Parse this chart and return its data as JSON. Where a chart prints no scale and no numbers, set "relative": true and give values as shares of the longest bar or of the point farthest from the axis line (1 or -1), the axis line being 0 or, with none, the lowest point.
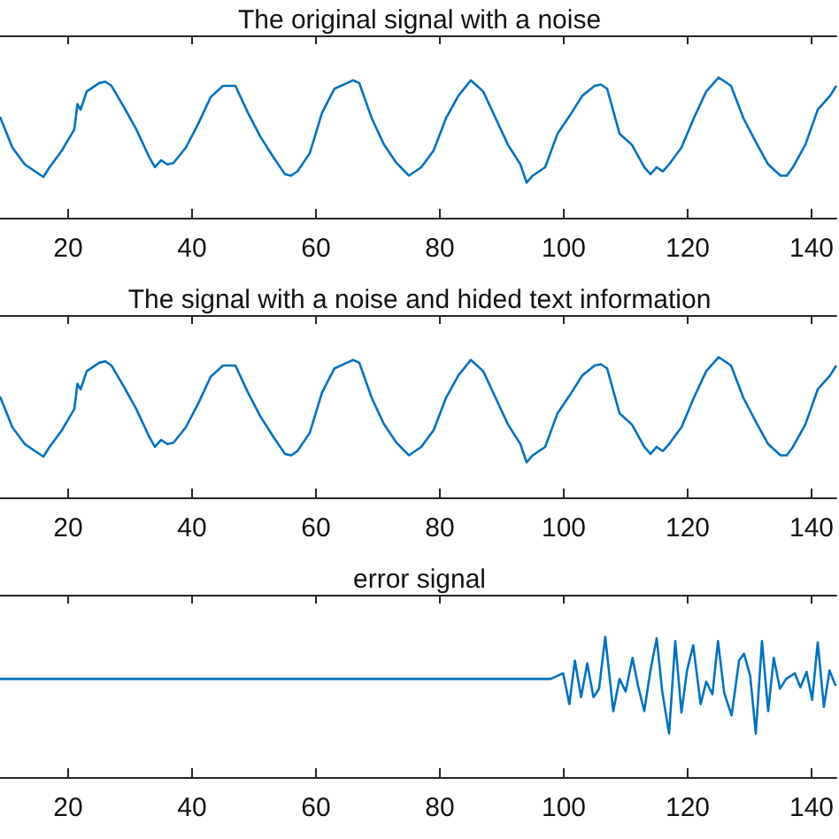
{
  "chart_data": [
    {
      "type": "line",
      "title": "The original signal with a noise",
      "relative": true,
      "tick_labels": "x",
      "xlim": [
        9,
        144
      ],
      "xticks": [
        20,
        40,
        60,
        80,
        100,
        120,
        140
      ],
      "series": [
        {
          "color": "#0072bd",
          "x": [
            9,
            11,
            13,
            15,
            16,
            17,
            19,
            21,
            21.5,
            22,
            23,
            25,
            26,
            27,
            29,
            31,
            33,
            34,
            35,
            36,
            37,
            39,
            41,
            43,
            45,
            47,
            49,
            51,
            53,
            55,
            56,
            57,
            59,
            61,
            63,
            65,
            66,
            67,
            69,
            71,
            73,
            75,
            77,
            79,
            81,
            83,
            85,
            87,
            89,
            91,
            93,
            94,
            95,
            97,
            99,
            101,
            103,
            105,
            106,
            107,
            109,
            111,
            113,
            114,
            115,
            116,
            117,
            119,
            121,
            123,
            125,
            127,
            129,
            131,
            133,
            135,
            136,
            137,
            139,
            141,
            143,
            144
          ],
          "values": [
            0.72,
            0.5,
            0.38,
            0.32,
            0.29,
            0.36,
            0.48,
            0.63,
            0.81,
            0.77,
            0.9,
            0.96,
            0.97,
            0.94,
            0.79,
            0.63,
            0.44,
            0.36,
            0.41,
            0.38,
            0.39,
            0.5,
            0.67,
            0.86,
            0.94,
            0.94,
            0.75,
            0.58,
            0.44,
            0.31,
            0.3,
            0.33,
            0.46,
            0.75,
            0.92,
            0.96,
            0.98,
            0.96,
            0.71,
            0.52,
            0.39,
            0.3,
            0.36,
            0.48,
            0.71,
            0.87,
            0.98,
            0.9,
            0.71,
            0.52,
            0.38,
            0.25,
            0.3,
            0.36,
            0.6,
            0.73,
            0.87,
            0.94,
            0.95,
            0.92,
            0.6,
            0.52,
            0.36,
            0.31,
            0.36,
            0.33,
            0.38,
            0.5,
            0.71,
            0.9,
            1,
            0.94,
            0.71,
            0.54,
            0.38,
            0.3,
            0.3,
            0.36,
            0.52,
            0.77,
            0.87,
            0.94
          ]
        }
      ]
    },
    {
      "type": "line",
      "title": "The signal with a noise and hided text information",
      "relative": true,
      "tick_labels": "x",
      "xlim": [
        9,
        144
      ],
      "xticks": [
        20,
        40,
        60,
        80,
        100,
        120,
        140
      ],
      "series": [
        {
          "color": "#0072bd",
          "x": [
            9,
            11,
            13,
            15,
            16,
            17,
            19,
            21,
            21.5,
            22,
            23,
            25,
            26,
            27,
            29,
            31,
            33,
            34,
            35,
            36,
            37,
            39,
            41,
            43,
            45,
            47,
            49,
            51,
            53,
            55,
            56,
            57,
            59,
            61,
            63,
            65,
            66,
            67,
            69,
            71,
            73,
            75,
            77,
            79,
            81,
            83,
            85,
            87,
            89,
            91,
            93,
            94,
            95,
            97,
            99,
            101,
            103,
            105,
            106,
            107,
            109,
            111,
            113,
            114,
            115,
            116,
            117,
            119,
            121,
            123,
            125,
            127,
            129,
            131,
            133,
            135,
            136,
            137,
            139,
            141,
            143,
            144
          ],
          "values": [
            0.72,
            0.5,
            0.38,
            0.32,
            0.29,
            0.36,
            0.48,
            0.63,
            0.81,
            0.77,
            0.9,
            0.96,
            0.97,
            0.94,
            0.79,
            0.63,
            0.44,
            0.36,
            0.41,
            0.38,
            0.39,
            0.5,
            0.67,
            0.86,
            0.94,
            0.94,
            0.75,
            0.58,
            0.44,
            0.31,
            0.3,
            0.33,
            0.46,
            0.75,
            0.92,
            0.96,
            0.98,
            0.96,
            0.71,
            0.52,
            0.39,
            0.3,
            0.36,
            0.48,
            0.71,
            0.87,
            0.98,
            0.9,
            0.71,
            0.52,
            0.38,
            0.25,
            0.3,
            0.36,
            0.6,
            0.73,
            0.87,
            0.94,
            0.95,
            0.92,
            0.6,
            0.52,
            0.36,
            0.31,
            0.36,
            0.33,
            0.38,
            0.5,
            0.71,
            0.9,
            1,
            0.94,
            0.71,
            0.54,
            0.38,
            0.3,
            0.3,
            0.36,
            0.52,
            0.77,
            0.87,
            0.94
          ]
        }
      ]
    },
    {
      "type": "line",
      "title": "error signal",
      "relative": true,
      "tick_labels": "x",
      "xlim": [
        9,
        144
      ],
      "xticks": [
        20,
        40,
        60,
        80,
        100,
        120,
        140
      ],
      "series": [
        {
          "color": "#0072bd",
          "x": [
            9,
            97.9,
            99.9,
            100.9,
            101.8,
            102.8,
            103.8,
            104.8,
            105.7,
            106.7,
            108,
            109,
            110,
            111.1,
            112,
            113,
            114,
            115,
            115.9,
            117,
            118,
            119,
            119.9,
            120.9,
            122.1,
            123,
            124,
            124.9,
            125.9,
            127.1,
            128.3,
            129.1,
            130.1,
            131,
            132,
            133,
            133.9,
            134.9,
            135.9,
            137.3,
            138.2,
            139.2,
            140.1,
            141,
            142,
            142.9,
            143.9
          ],
          "values": [
            0.7,
            0.7,
            0.74,
            0.52,
            0.83,
            0.57,
            0.81,
            0.57,
            0.63,
            1,
            0.47,
            0.7,
            0.61,
            0.85,
            0.65,
            0.47,
            0.76,
            0.99,
            0.61,
            0.31,
            0.97,
            0.46,
            0.76,
            0.94,
            0.52,
            0.68,
            0.59,
            0.97,
            0.6,
            0.44,
            0.83,
            0.88,
            0.72,
            0.31,
            0.97,
            0.47,
            0.85,
            0.63,
            0.7,
            0.74,
            0.64,
            0.75,
            0.55,
            0.96,
            0.5,
            0.76,
            0.65
          ]
        }
      ]
    }
  ]
}
